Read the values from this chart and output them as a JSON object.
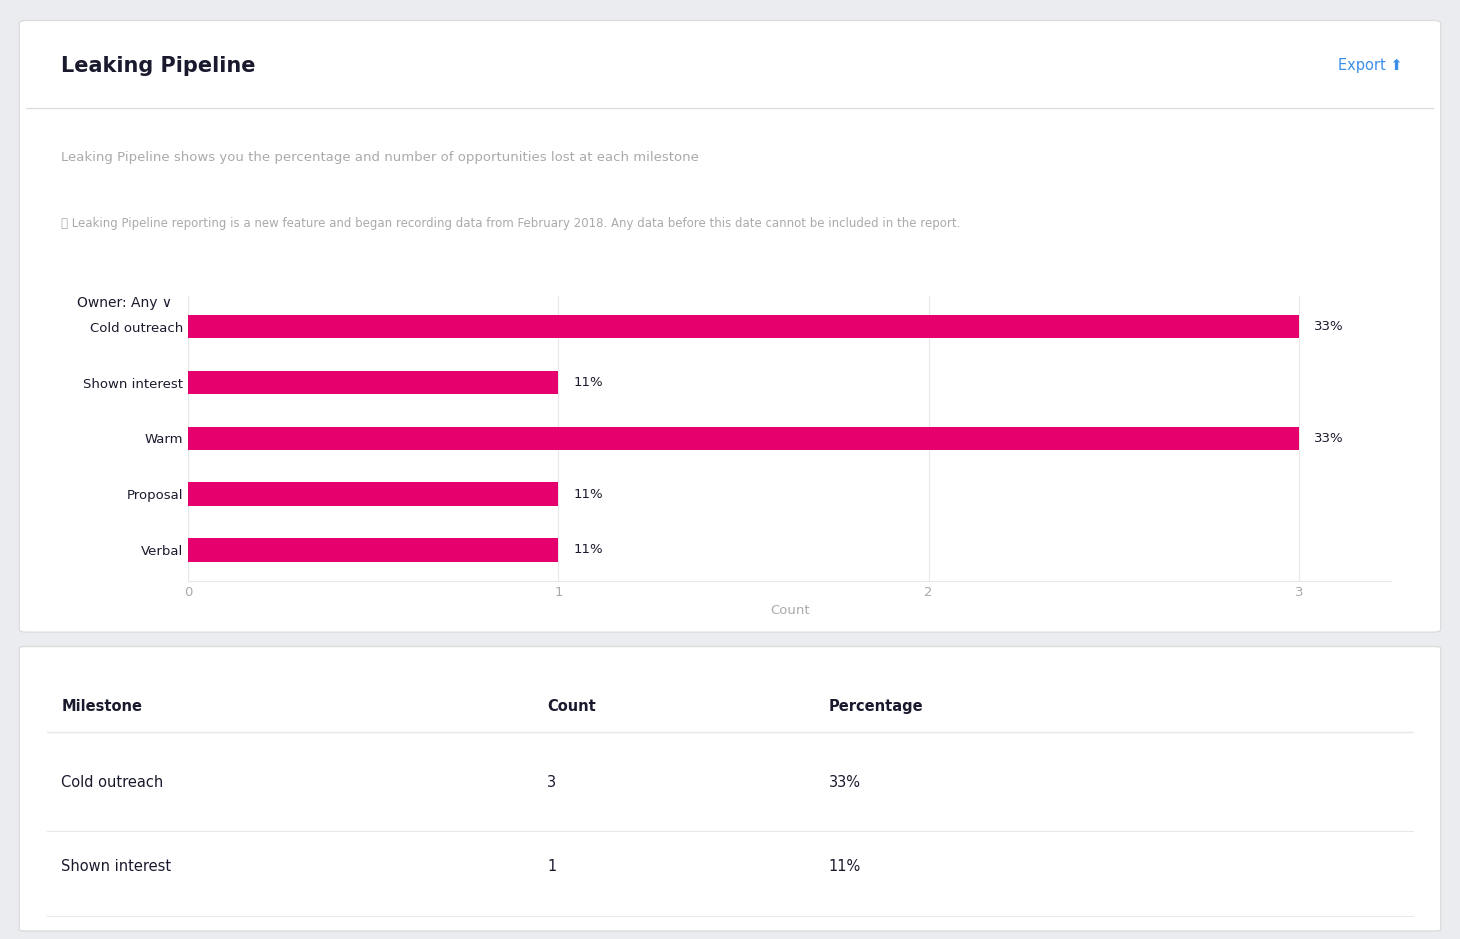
{
  "title": "Leaking Pipeline",
  "subtitle": "Leaking Pipeline shows you the percentage and number of opportunities lost at each milestone",
  "note": "ⓘ Leaking Pipeline reporting is a new feature and began recording data from February 2018. Any data before this date cannot be included in the report.",
  "categories": [
    "Cold outreach",
    "Shown interest",
    "Warm",
    "Proposal",
    "Verbal"
  ],
  "values": [
    3,
    1,
    3,
    1,
    1
  ],
  "percentages": [
    "33%",
    "11%",
    "33%",
    "11%",
    "11%"
  ],
  "bar_color": "#E5006E",
  "xlabel": "Count",
  "xlim_max": 3.25,
  "xticks": [
    0,
    1,
    2,
    3
  ],
  "background_color": "#FFFFFF",
  "page_background": "#EAECF0",
  "border_color": "#DDDDDD",
  "text_color": "#1A1A2E",
  "subtitle_color": "#AAAAAA",
  "grid_color": "#E8E8E8",
  "export_color": "#3B8FE8",
  "table_headers": [
    "Milestone",
    "Count",
    "Percentage"
  ],
  "table_rows": [
    [
      "Cold outreach",
      "3",
      "33%"
    ],
    [
      "Shown interest",
      "1",
      "11%"
    ]
  ],
  "bar_height": 0.42,
  "label_fontsize": 9.5,
  "title_fontsize": 15,
  "subtitle_fontsize": 9.5,
  "note_fontsize": 8.5,
  "axis_fontsize": 9.5,
  "pct_fontsize": 9.5,
  "table_header_fontsize": 10.5,
  "table_row_fontsize": 10.5
}
